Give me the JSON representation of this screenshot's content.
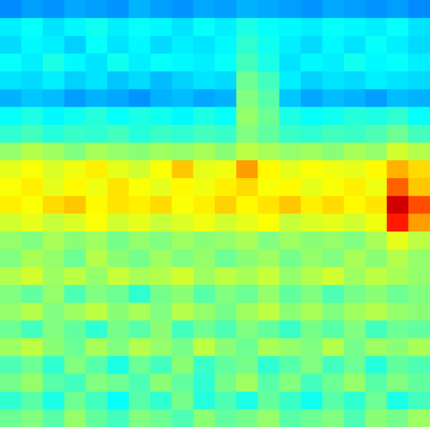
{
  "chart_data": {
    "type": "heatmap",
    "tick_labels": false,
    "zlim": [
      0,
      100
    ],
    "cells": [
      [
        26,
        28,
        27,
        29,
        28,
        27,
        30,
        28,
        27,
        29,
        28,
        30,
        29,
        28,
        27,
        29,
        28,
        27,
        28,
        26
      ],
      [
        36,
        38,
        35,
        37,
        39,
        36,
        38,
        37,
        35,
        38,
        36,
        40,
        38,
        37,
        36,
        38,
        37,
        36,
        38,
        35
      ],
      [
        34,
        37,
        36,
        33,
        38,
        35,
        37,
        34,
        36,
        35,
        37,
        42,
        39,
        36,
        34,
        37,
        35,
        38,
        36,
        34
      ],
      [
        38,
        36,
        40,
        37,
        35,
        39,
        36,
        38,
        37,
        36,
        38,
        44,
        40,
        35,
        37,
        36,
        39,
        37,
        38,
        36
      ],
      [
        35,
        34,
        36,
        33,
        35,
        32,
        34,
        31,
        33,
        35,
        34,
        48,
        44,
        36,
        33,
        35,
        34,
        36,
        35,
        34
      ],
      [
        30,
        32,
        31,
        28,
        30,
        29,
        27,
        30,
        31,
        29,
        30,
        50,
        46,
        32,
        29,
        31,
        30,
        28,
        31,
        30
      ],
      [
        38,
        40,
        37,
        39,
        41,
        38,
        40,
        39,
        37,
        40,
        38,
        52,
        48,
        40,
        38,
        39,
        41,
        40,
        42,
        38
      ],
      [
        42,
        44,
        41,
        43,
        42,
        44,
        41,
        43,
        42,
        44,
        43,
        50,
        47,
        43,
        42,
        44,
        43,
        45,
        48,
        44
      ],
      [
        52,
        55,
        53,
        50,
        54,
        52,
        51,
        53,
        52,
        54,
        51,
        56,
        54,
        52,
        53,
        51,
        54,
        52,
        58,
        55
      ],
      [
        60,
        62,
        59,
        61,
        64,
        60,
        58,
        62,
        68,
        60,
        61,
        72,
        63,
        60,
        62,
        61,
        60,
        63,
        70,
        66
      ],
      [
        62,
        64,
        60,
        63,
        61,
        65,
        62,
        60,
        63,
        61,
        64,
        66,
        62,
        63,
        60,
        62,
        64,
        61,
        78,
        68
      ],
      [
        64,
        62,
        66,
        68,
        63,
        65,
        64,
        66,
        62,
        64,
        67,
        63,
        65,
        68,
        64,
        66,
        63,
        65,
        92,
        80
      ],
      [
        58,
        60,
        57,
        59,
        62,
        58,
        60,
        57,
        59,
        61,
        58,
        60,
        62,
        57,
        59,
        60,
        58,
        61,
        85,
        72
      ],
      [
        52,
        50,
        54,
        51,
        53,
        49,
        52,
        50,
        53,
        51,
        52,
        54,
        50,
        53,
        51,
        52,
        50,
        54,
        60,
        56
      ],
      [
        50,
        54,
        52,
        48,
        55,
        51,
        49,
        53,
        50,
        52,
        48,
        51,
        53,
        49,
        52,
        50,
        54,
        51,
        55,
        52
      ],
      [
        55,
        58,
        53,
        56,
        52,
        57,
        54,
        55,
        58,
        53,
        56,
        54,
        57,
        52,
        55,
        58,
        53,
        56,
        54,
        52
      ],
      [
        50,
        47,
        52,
        45,
        50,
        48,
        42,
        49,
        51,
        46,
        50,
        48,
        52,
        47,
        50,
        45,
        49,
        51,
        48,
        50
      ],
      [
        52,
        55,
        50,
        53,
        56,
        51,
        54,
        50,
        55,
        52,
        49,
        53,
        56,
        51,
        54,
        50,
        53,
        55,
        52,
        51
      ],
      [
        48,
        44,
        50,
        47,
        42,
        49,
        46,
        51,
        44,
        48,
        45,
        50,
        47,
        43,
        49,
        46,
        50,
        44,
        48,
        47
      ],
      [
        53,
        56,
        51,
        48,
        54,
        50,
        55,
        52,
        49,
        56,
        51,
        48,
        54,
        52,
        50,
        55,
        49,
        53,
        51,
        54
      ],
      [
        45,
        48,
        42,
        50,
        46,
        40,
        48,
        44,
        51,
        43,
        47,
        49,
        42,
        46,
        50,
        44,
        48,
        41,
        47,
        45
      ],
      [
        49,
        52,
        46,
        44,
        50,
        48,
        45,
        51,
        47,
        42,
        49,
        53,
        46,
        50,
        44,
        48,
        52,
        46,
        50,
        47
      ],
      [
        42,
        46,
        40,
        48,
        44,
        38,
        46,
        42,
        49,
        41,
        45,
        40,
        47,
        43,
        39,
        46,
        42,
        48,
        40,
        44
      ],
      [
        48,
        50,
        46,
        52,
        47,
        44,
        50,
        48,
        45,
        51,
        47,
        49,
        52,
        46,
        48,
        50,
        45,
        51,
        49,
        53
      ]
    ]
  }
}
